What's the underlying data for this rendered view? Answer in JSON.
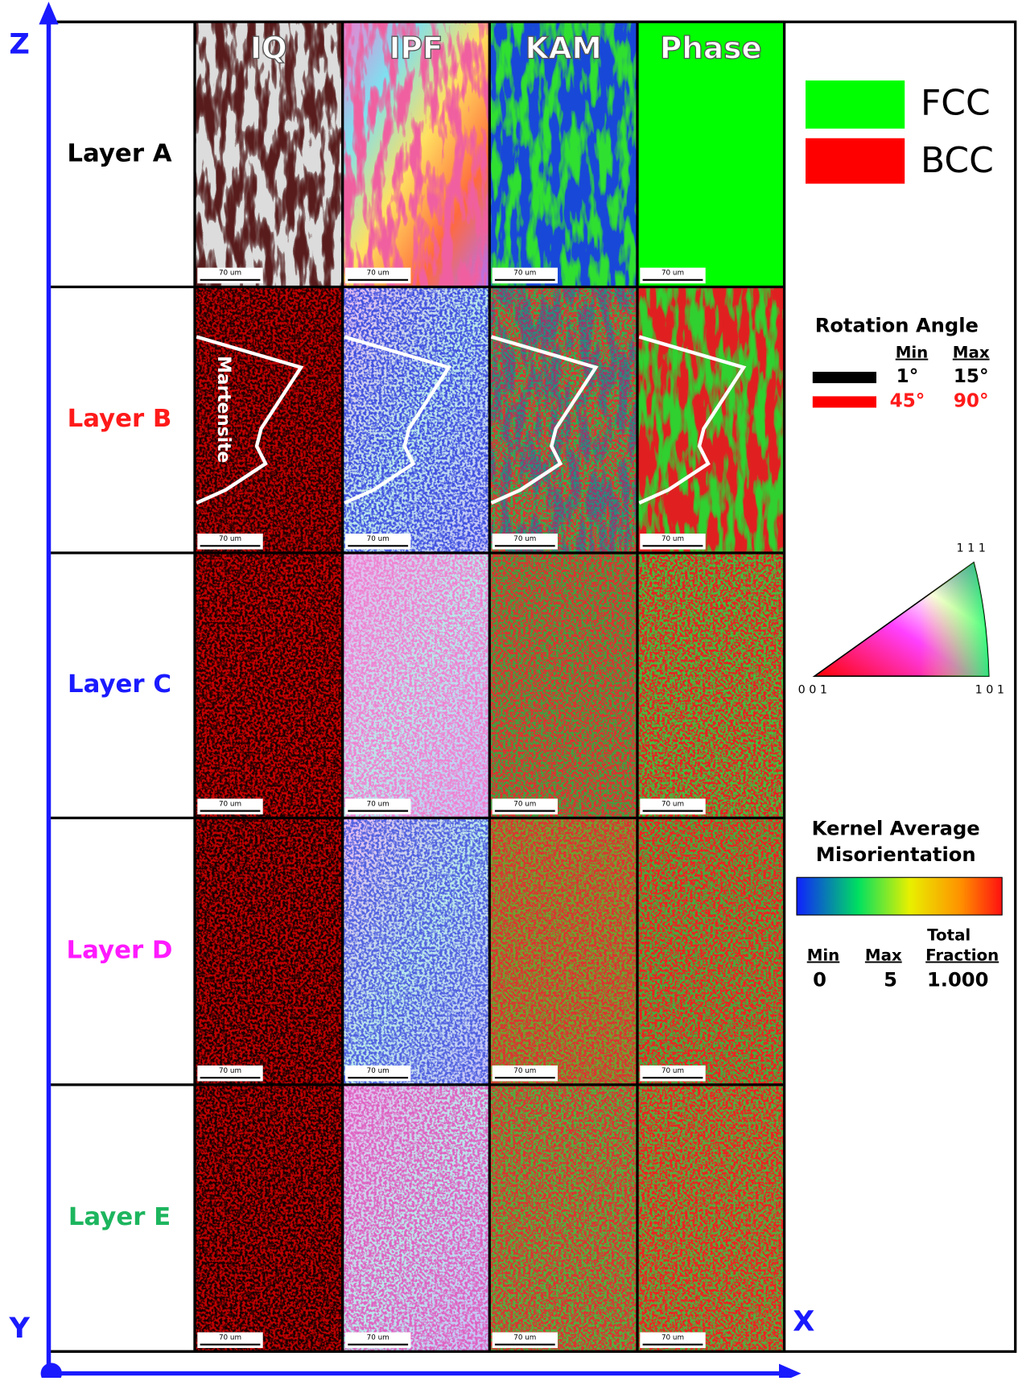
{
  "axes": {
    "z": "Z",
    "y": "Y",
    "x": "X"
  },
  "columns": [
    "IQ",
    "IPF",
    "KAM",
    "Phase"
  ],
  "rows": [
    "Layer A",
    "Layer B",
    "Layer C",
    "Layer D",
    "Layer E"
  ],
  "scale_bar": "70 um",
  "annotation": "Martensite",
  "legend": {
    "phase": {
      "fcc": "FCC",
      "bcc": "BCC"
    },
    "rotation_angle": {
      "title": "Rotation Angle",
      "min": "Min",
      "max": "Max",
      "ranges": [
        [
          "1°",
          "15°"
        ],
        [
          "45°",
          "90°"
        ]
      ]
    },
    "ipf": {
      "top": "1 1 1",
      "left": "0 0 1",
      "right": "1 0 1"
    },
    "kam": {
      "title": [
        "Kernel Average",
        "Misorientation"
      ],
      "min": "Min",
      "max": "Max",
      "total": [
        "Total",
        "Fraction"
      ],
      "min_value": "0",
      "max_value": "5",
      "total_value": "1.000"
    }
  }
}
